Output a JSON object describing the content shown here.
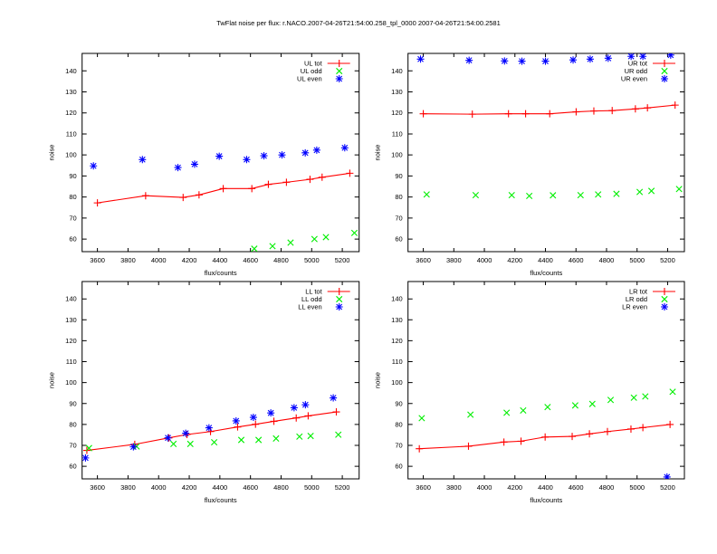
{
  "title": "TwFlat noise per flux: r.NACO.2007-04-26T21:54:00.258_tpl_0000   2007-04-26T21:54:00.2581",
  "colors": {
    "tot": "#ff0000",
    "odd": "#00ee00",
    "even": "#0000ff",
    "axis": "#000000"
  },
  "chart_data": [
    {
      "type": "scatter",
      "panel": "UL",
      "xlabel": "flux/counts",
      "ylabel": "noise",
      "xlim": [
        3500,
        5310
      ],
      "ylim": [
        54,
        148.3
      ],
      "xticks": [
        3600,
        3800,
        4000,
        4200,
        4400,
        4600,
        4800,
        5000,
        5200
      ],
      "yticks": [
        60,
        70,
        80,
        90,
        100,
        110,
        120,
        130,
        140
      ],
      "legend_position": "top-right",
      "series": [
        {
          "name": "UL tot",
          "key": "tot",
          "x": [
            3600,
            3915,
            4160,
            4264,
            4422,
            4609,
            4717,
            4835,
            4989,
            5068,
            5249
          ],
          "y": [
            77.2,
            80.6,
            79.8,
            81,
            84,
            84,
            86,
            87,
            88.4,
            89.4,
            91.3
          ]
        },
        {
          "name": "UL odd",
          "key": "odd",
          "x": [
            4625,
            4744,
            4862,
            5018,
            5093,
            5279
          ],
          "y": [
            55.4,
            56.6,
            58.3,
            60,
            60.9,
            62.9
          ]
        },
        {
          "name": "UL even",
          "key": "even",
          "x": [
            3574,
            3894,
            4126,
            4235,
            4396,
            4575,
            4688,
            4806,
            4958,
            5033,
            5216
          ],
          "y": [
            94.8,
            97.8,
            94,
            95.6,
            99.4,
            97.8,
            99.6,
            100,
            101,
            102.3,
            103.4
          ]
        }
      ]
    },
    {
      "type": "scatter",
      "panel": "UR",
      "xlabel": "flux/counts",
      "ylabel": "noise",
      "xlim": [
        3500,
        5310
      ],
      "ylim": [
        54,
        148.3
      ],
      "xticks": [
        3600,
        3800,
        4000,
        4200,
        4400,
        4600,
        4800,
        5000,
        5200
      ],
      "yticks": [
        60,
        70,
        80,
        90,
        100,
        110,
        120,
        130,
        140
      ],
      "legend_position": "top-right",
      "series": [
        {
          "name": "UR tot",
          "key": "tot",
          "x": [
            3600,
            3921,
            4158,
            4270,
            4428,
            4601,
            4717,
            4837,
            4989,
            5068,
            5249
          ],
          "y": [
            119.6,
            119.4,
            119.6,
            119.6,
            119.6,
            120.5,
            120.9,
            121.1,
            121.9,
            122.4,
            123.7
          ]
        },
        {
          "name": "UR odd",
          "key": "odd",
          "x": [
            3622,
            3943,
            4179,
            4294,
            4449,
            4630,
            4745,
            4865,
            5017,
            5094,
            5275
          ],
          "y": [
            81.2,
            80.9,
            80.9,
            80.5,
            80.8,
            80.9,
            81.2,
            81.5,
            82.4,
            82.9,
            83.8
          ]
        },
        {
          "name": "UR even",
          "key": "even",
          "x": [
            3582,
            3900,
            4132,
            4246,
            4400,
            4581,
            4693,
            4811,
            4961,
            5038,
            5220
          ],
          "y": [
            145.6,
            145,
            144.7,
            144.6,
            144.6,
            145.2,
            145.6,
            146,
            146.9,
            146.9,
            147.5
          ]
        }
      ]
    },
    {
      "type": "scatter",
      "panel": "LL",
      "xlabel": "flux/counts",
      "ylabel": "noise",
      "xlim": [
        3500,
        5310
      ],
      "ylim": [
        54,
        148.3
      ],
      "xticks": [
        3600,
        3800,
        4000,
        4200,
        4400,
        4600,
        4800,
        5000,
        5200
      ],
      "yticks": [
        60,
        70,
        80,
        90,
        100,
        110,
        120,
        130,
        140
      ],
      "legend_position": "top-right",
      "series": [
        {
          "name": "LL tot",
          "key": "tot",
          "x": [
            3531,
            3844,
            4067,
            4185,
            4339,
            4516,
            4633,
            4753,
            4899,
            4977,
            5161
          ],
          "y": [
            67.6,
            70.5,
            73.6,
            75.2,
            76.6,
            78.8,
            80.1,
            81.5,
            83.1,
            84.1,
            86
          ]
        },
        {
          "name": "LL odd",
          "key": "odd",
          "x": [
            3545,
            3856,
            4097,
            4207,
            4363,
            4540,
            4653,
            4767,
            4920,
            4993,
            5174
          ],
          "y": [
            68.7,
            69.5,
            70.7,
            70.7,
            71.5,
            72.6,
            72.6,
            73.3,
            74.2,
            74.5,
            75.1
          ]
        },
        {
          "name": "LL even",
          "key": "even",
          "x": [
            3522,
            3835,
            4061,
            4177,
            4329,
            4506,
            4619,
            4733,
            4885,
            4959,
            5141
          ],
          "y": [
            64,
            69.3,
            73.6,
            75.8,
            78.4,
            81.7,
            83.4,
            85.5,
            88,
            89.4,
            92.7
          ]
        }
      ]
    },
    {
      "type": "scatter",
      "panel": "LR",
      "xlabel": "flux/counts",
      "ylabel": "noise",
      "xlim": [
        3500,
        5310
      ],
      "ylim": [
        54,
        148.3
      ],
      "xticks": [
        3600,
        3800,
        4000,
        4200,
        4400,
        4600,
        4800,
        5000,
        5200
      ],
      "yticks": [
        60,
        70,
        80,
        90,
        100,
        110,
        120,
        130,
        140
      ],
      "legend_position": "top-right",
      "series": [
        {
          "name": "LR tot",
          "key": "tot",
          "x": [
            3574,
            3896,
            4128,
            4240,
            4398,
            4575,
            4688,
            4806,
            4960,
            5038,
            5216
          ],
          "y": [
            68.4,
            69.6,
            71.6,
            72,
            74,
            74.3,
            75.5,
            76.6,
            77.8,
            78.5,
            80
          ]
        },
        {
          "name": "LR odd",
          "key": "odd",
          "x": [
            3590,
            3909,
            4146,
            4254,
            4414,
            4595,
            4707,
            4827,
            4979,
            5054,
            5233
          ],
          "y": [
            83,
            84.7,
            85.6,
            86.7,
            88.3,
            89.1,
            89.8,
            91.7,
            92.8,
            93.4,
            95.6
          ]
        },
        {
          "name": "LR even",
          "key": "even",
          "x": [
            5196
          ],
          "y": [
            54.9
          ]
        }
      ]
    }
  ]
}
